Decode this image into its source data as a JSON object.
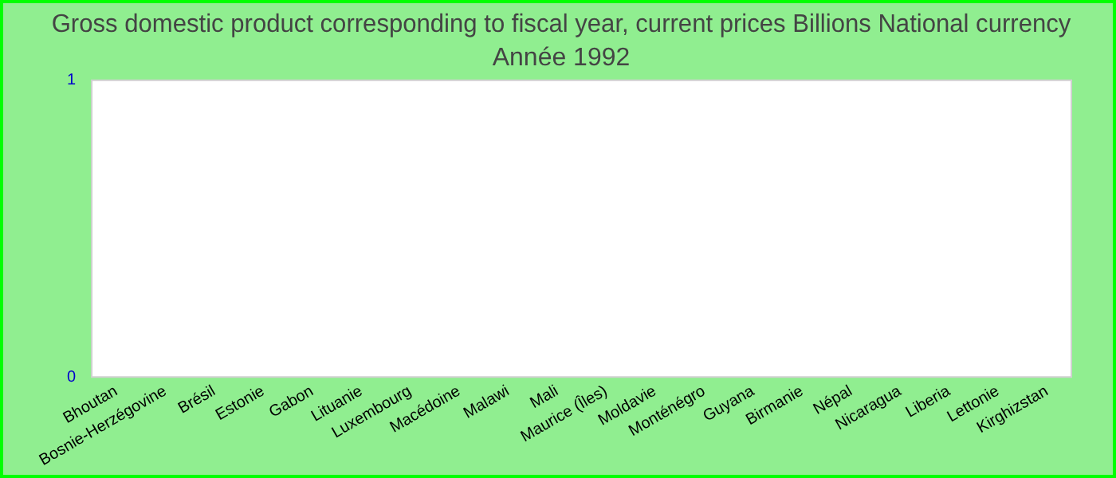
{
  "chart_data": {
    "type": "bar",
    "title": "Gross domestic product corresponding to fiscal year, current prices Billions National currency",
    "subtitle": "Année 1992",
    "categories": [
      "Bhoutan",
      "Bosnie-Herzégovine",
      "Brésil",
      "Estonie",
      "Gabon",
      "Lituanie",
      "Luxembourg",
      "Macédoine",
      "Malawi",
      "Mali",
      "Maurice (Îles)",
      "Moldavie",
      "Monténégro",
      "Guyana",
      "Birmanie",
      "Népal",
      "Nicaragua",
      "Liberia",
      "Lettonie",
      "Kirghizstan"
    ],
    "values": [
      null,
      null,
      null,
      null,
      null,
      null,
      null,
      null,
      null,
      null,
      null,
      null,
      null,
      null,
      null,
      null,
      null,
      null,
      null,
      null
    ],
    "ylim": [
      0,
      1
    ],
    "yticks": [
      0,
      1
    ],
    "grid": false,
    "legend": false
  }
}
